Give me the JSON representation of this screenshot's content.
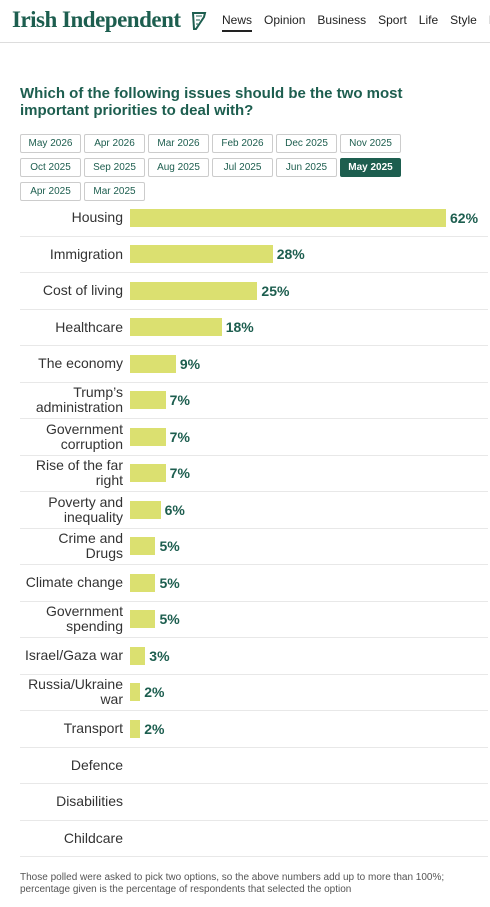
{
  "header": {
    "logo": "Irish Independent",
    "nav": [
      "News",
      "Opinion",
      "Business",
      "Sport",
      "Life",
      "Style",
      "E"
    ]
  },
  "tabs": [
    "May 2026",
    "Apr 2026",
    "Mar 2026",
    "Feb 2026",
    "Dec 2025",
    "Nov 2025",
    "Oct 2025",
    "Sep 2025",
    "Aug 2025",
    "Jul 2025",
    "Jun 2025",
    "May 2025",
    "Apr 2025",
    "Mar 2025"
  ],
  "selected_tab": "May 2025",
  "chart_data": {
    "type": "bar",
    "orientation": "horizontal",
    "title": "Which of the following issues should be the two most important priorities to deal with?",
    "categories": [
      "Housing",
      "Immigration",
      "Cost of living",
      "Healthcare",
      "The economy",
      "Trump’s administration",
      "Government corruption",
      "Rise of the far right",
      "Poverty and inequality",
      "Crime and Drugs",
      "Climate change",
      "Government spending",
      "Israel/Gaza war",
      "Russia/Ukraine war",
      "Transport",
      "Defence",
      "Disabilities",
      "Childcare"
    ],
    "values": [
      62,
      28,
      25,
      18,
      9,
      7,
      7,
      7,
      6,
      5,
      5,
      5,
      3,
      2,
      2,
      null,
      null,
      null
    ],
    "value_labels": [
      "62%",
      "28%",
      "25%",
      "18%",
      "9%",
      "7%",
      "7%",
      "7%",
      "6%",
      "5%",
      "5%",
      "5%",
      "3%",
      "2%",
      "2%",
      null,
      null,
      null
    ],
    "color": "#dbe070"
  },
  "footnote": "Those polled were asked to pick two options, so the above numbers add up to more than 100%; percentage given is the percentage of respondents that selected the option"
}
